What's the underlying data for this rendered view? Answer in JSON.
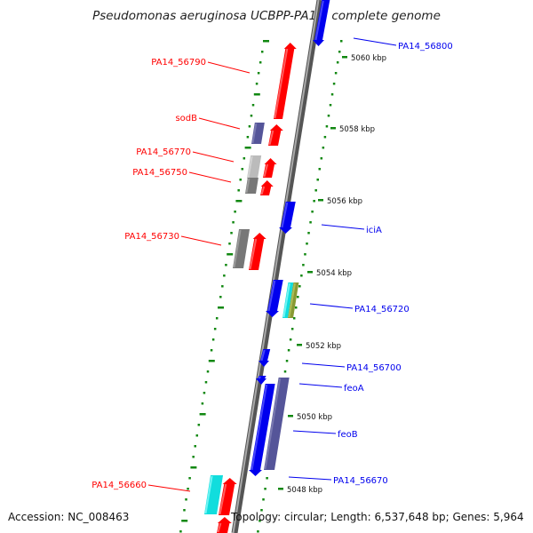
{
  "title": "Pseudomonas aeruginosa UCBPP-PA14, complete genome",
  "footer": {
    "accession": "Accession: NC_008463",
    "topology": "Topology: circular; Length: 6,537,648 bp; Genes: 5,964"
  },
  "colors": {
    "forward": "#0000ee",
    "reverse": "#ff0000",
    "purple": "#555599",
    "gray": "#777777",
    "lightgray": "#bbbbbb",
    "cyan": "#11dddd",
    "olive": "#889933",
    "tick": "#118811"
  },
  "ruler": [
    {
      "label": "5060 kbp"
    },
    {
      "label": "5058 kbp"
    },
    {
      "label": "5056 kbp"
    },
    {
      "label": "5054 kbp"
    },
    {
      "label": "5052 kbp"
    },
    {
      "label": "5050 kbp"
    },
    {
      "label": "5048 kbp"
    }
  ],
  "left_labels": [
    {
      "text": "PA14_56790"
    },
    {
      "text": "sodB"
    },
    {
      "text": "PA14_56770"
    },
    {
      "text": "PA14_56750"
    },
    {
      "text": "PA14_56730"
    },
    {
      "text": "PA14_56660"
    }
  ],
  "right_labels": [
    {
      "text": "PA14_56800"
    },
    {
      "text": "iciA"
    },
    {
      "text": "PA14_56720"
    },
    {
      "text": "PA14_56700"
    },
    {
      "text": "feoA"
    },
    {
      "text": "feoB"
    },
    {
      "text": "PA14_56670"
    }
  ]
}
